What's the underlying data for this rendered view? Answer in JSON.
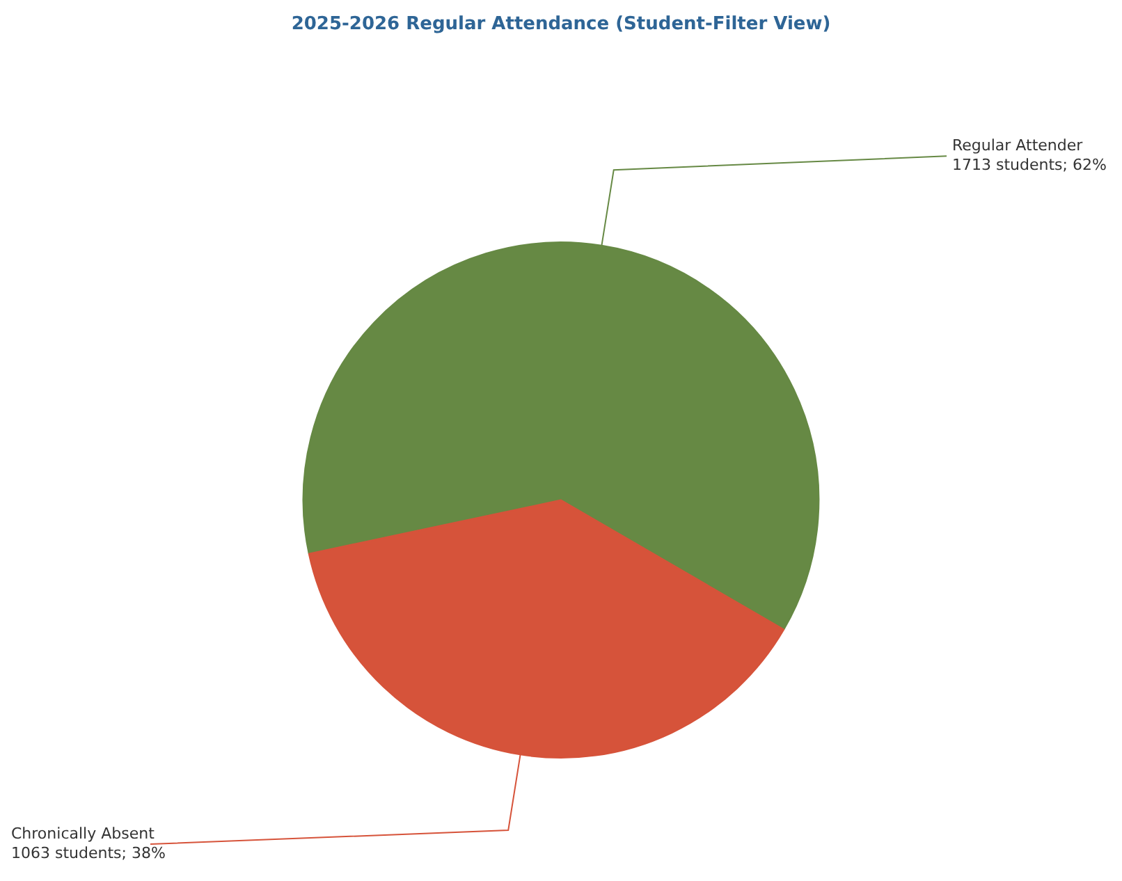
{
  "chart_data": {
    "type": "pie",
    "title": "2025-2026 Regular Attendance (Student-Filter View)",
    "categories": [
      "Regular Attender",
      "Chronically Absent"
    ],
    "values": [
      1713,
      1063
    ],
    "colors": [
      "#668944",
      "#d6533a"
    ],
    "value_labels": [
      "1713 students; 62%",
      "1063 students; 38%"
    ],
    "legend": false
  }
}
